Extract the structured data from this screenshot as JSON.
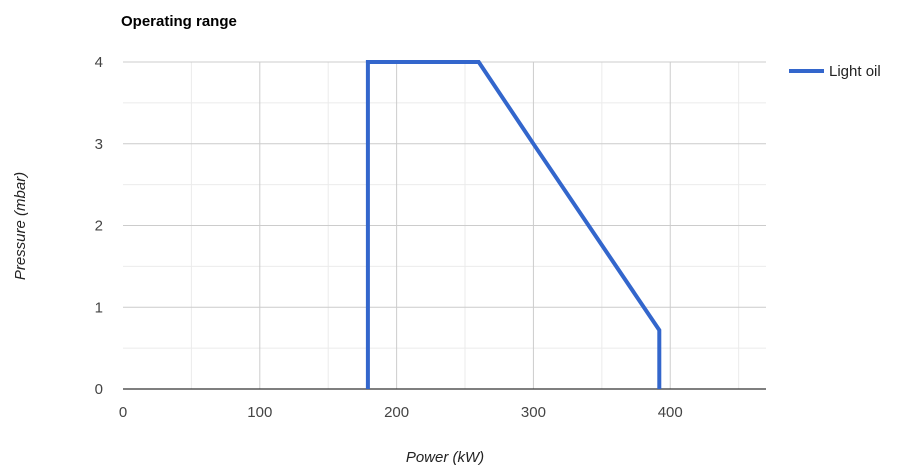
{
  "chart_data": {
    "type": "line",
    "title": "Operating range",
    "xlabel": "Power (kW)",
    "ylabel": "Pressure (mbar)",
    "xlim": [
      0,
      470
    ],
    "ylim": [
      0,
      4
    ],
    "x_ticks": [
      0,
      100,
      200,
      300,
      400
    ],
    "y_ticks": [
      0,
      1,
      2,
      3,
      4
    ],
    "x_minor_step": 50,
    "y_minor_step": 0.5,
    "grid": true,
    "legend_position": "right",
    "series": [
      {
        "name": "Light oil",
        "color": "#3366cc",
        "points": [
          [
            179,
            0
          ],
          [
            179,
            4
          ],
          [
            260,
            4
          ],
          [
            300,
            3
          ],
          [
            392,
            0.72
          ],
          [
            392,
            0
          ]
        ]
      }
    ]
  }
}
